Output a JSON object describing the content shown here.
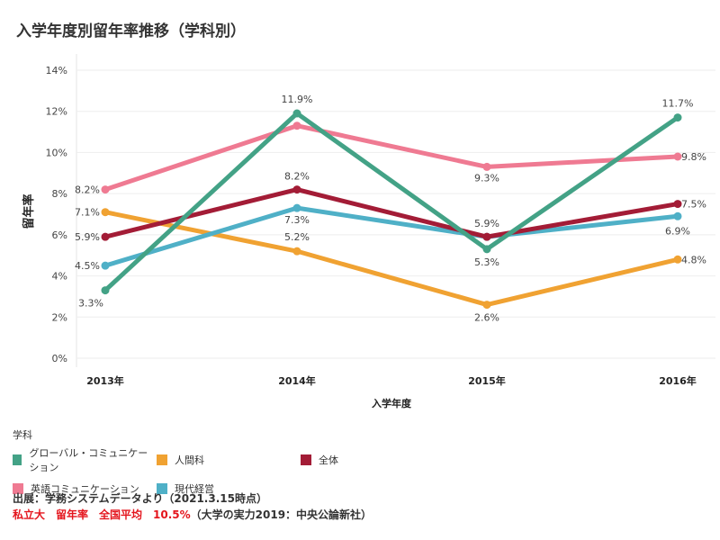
{
  "title": "入学年度別留年率推移（学科別）",
  "chart_data": {
    "type": "line",
    "categories": [
      "2013年",
      "2014年",
      "2015年",
      "2016年"
    ],
    "xlabel": "入学年度",
    "ylabel": "留年率",
    "ylim": [
      0,
      14
    ],
    "yticks": [
      "0%",
      "2%",
      "4%",
      "6%",
      "8%",
      "10%",
      "12%",
      "14%"
    ],
    "grid": true,
    "series": [
      {
        "name": "英語コミュニケーション",
        "color": "#ef7a92",
        "values": [
          8.2,
          11.3,
          9.3,
          9.8
        ],
        "labels": [
          "8.2%",
          "",
          "9.3%",
          "9.8%"
        ]
      },
      {
        "name": "人間科",
        "color": "#f0a232",
        "values": [
          7.1,
          5.2,
          2.6,
          4.8
        ],
        "labels": [
          "7.1%",
          "5.2%",
          "2.6%",
          "4.8%"
        ]
      },
      {
        "name": "現代経営",
        "color": "#4fb0c7",
        "values": [
          4.5,
          7.3,
          5.9,
          6.9
        ],
        "labels": [
          "4.5%",
          "7.3%",
          "",
          "6.9%"
        ]
      },
      {
        "name": "全体",
        "color": "#a31c36",
        "values": [
          5.9,
          8.2,
          5.9,
          7.5
        ],
        "labels": [
          "5.9%",
          "8.2%",
          "5.9%",
          "7.5%"
        ]
      },
      {
        "name": "グローバル・コミュニケーション",
        "color": "#43a286",
        "values": [
          3.3,
          11.9,
          5.3,
          11.7
        ],
        "labels": [
          "3.3%",
          "11.9%",
          "5.3%",
          "11.7%"
        ]
      }
    ]
  },
  "legend": {
    "title": "学科",
    "items": [
      {
        "name": "グローバル・コミュニケーション",
        "color": "#43a286"
      },
      {
        "name": "人間科",
        "color": "#f0a232"
      },
      {
        "name": "全体",
        "color": "#a31c36"
      },
      {
        "name": "英語コミュニケーション",
        "color": "#ef7a92"
      },
      {
        "name": "現代経営",
        "color": "#4fb0c7"
      }
    ]
  },
  "footer": {
    "source": "出展：学務システムデータより（2021.3.15時点）",
    "note_red": "私立大　留年率　全国平均　10.5%",
    "note_black": "（大学の実力2019：中央公論新社）"
  }
}
